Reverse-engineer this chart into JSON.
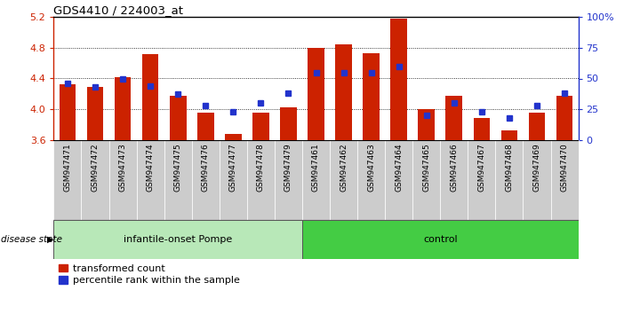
{
  "title": "GDS4410 / 224003_at",
  "samples": [
    "GSM947471",
    "GSM947472",
    "GSM947473",
    "GSM947474",
    "GSM947475",
    "GSM947476",
    "GSM947477",
    "GSM947478",
    "GSM947479",
    "GSM947461",
    "GSM947462",
    "GSM947463",
    "GSM947464",
    "GSM947465",
    "GSM947466",
    "GSM947467",
    "GSM947468",
    "GSM947469",
    "GSM947470"
  ],
  "red_values": [
    4.32,
    4.29,
    4.42,
    4.72,
    4.17,
    3.95,
    3.67,
    3.95,
    4.02,
    4.8,
    4.85,
    4.73,
    5.18,
    4.0,
    4.17,
    3.88,
    3.72,
    3.95,
    4.17
  ],
  "blue_values": [
    46,
    43,
    50,
    44,
    37,
    28,
    23,
    30,
    38,
    55,
    55,
    55,
    60,
    20,
    30,
    23,
    18,
    28,
    38
  ],
  "group1_label": "infantile-onset Pompe",
  "group2_label": "control",
  "group1_count": 9,
  "group2_count": 10,
  "ymin": 3.6,
  "ymax": 5.2,
  "yticks": [
    3.6,
    4.0,
    4.4,
    4.8,
    5.2
  ],
  "y2min": 0,
  "y2max": 100,
  "y2ticks": [
    0,
    25,
    50,
    75,
    100
  ],
  "bar_color": "#cc2200",
  "dot_color": "#2233cc",
  "group1_bg": "#b8e8b8",
  "group2_bg": "#44cc44",
  "sample_bg": "#cccccc",
  "legend_red_label": "transformed count",
  "legend_blue_label": "percentile rank within the sample",
  "disease_state_label": "disease state"
}
